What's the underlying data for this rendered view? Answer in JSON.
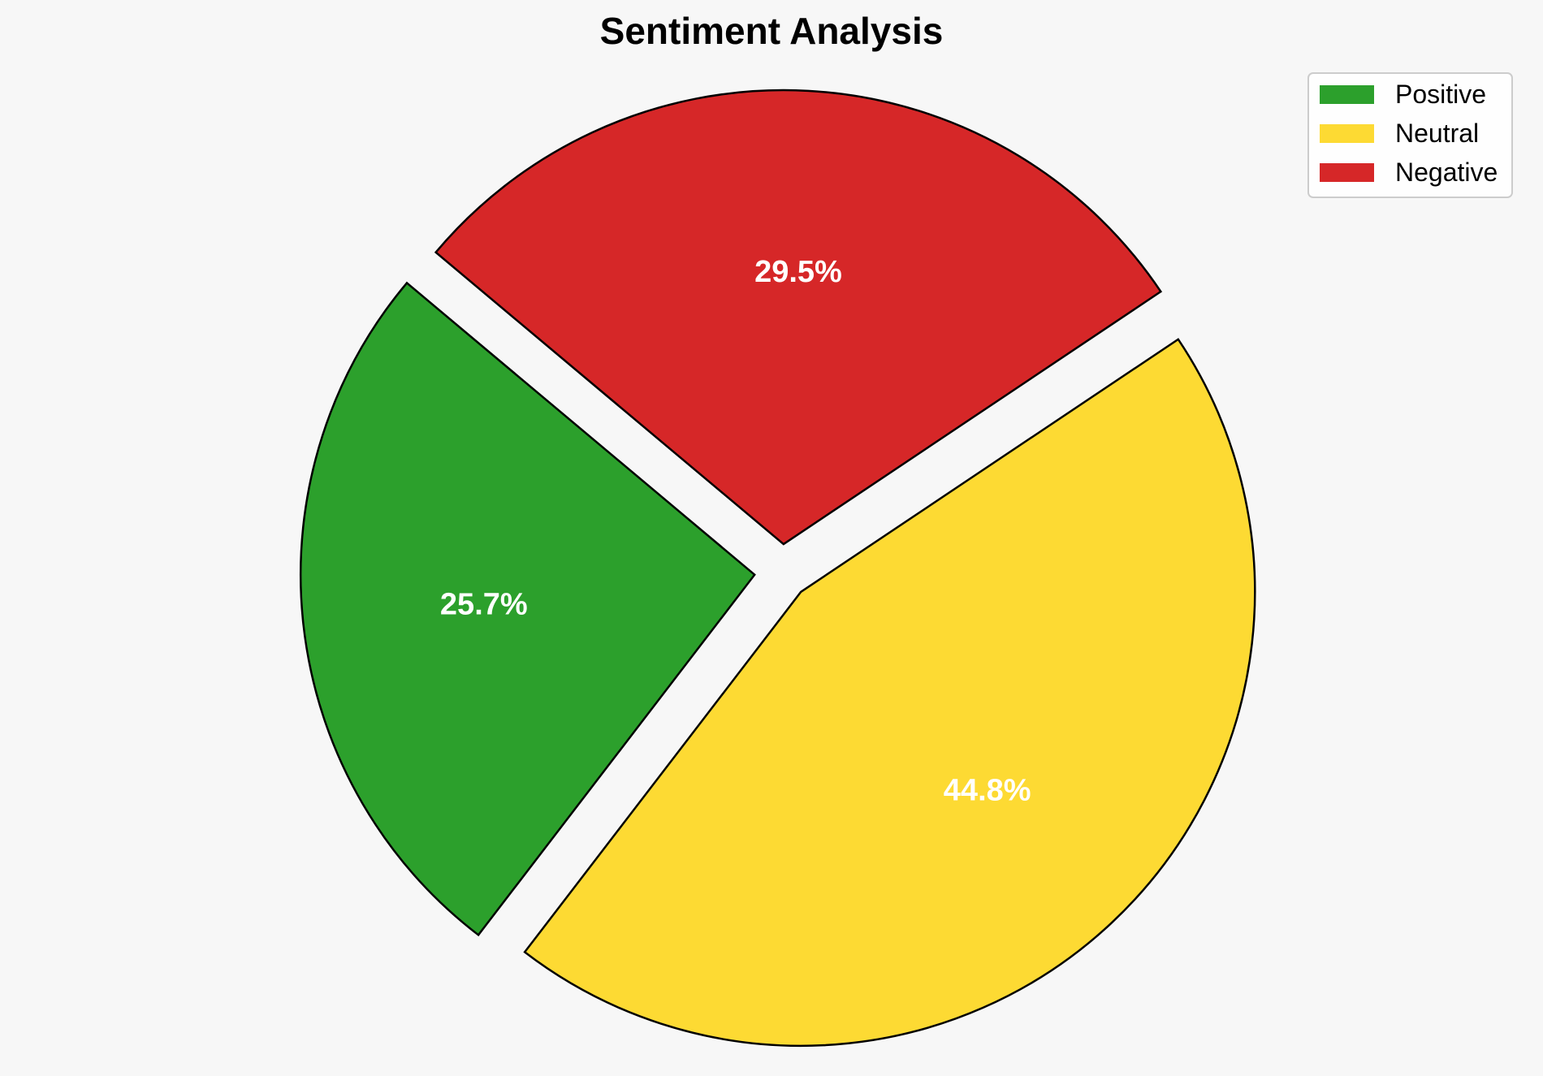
{
  "chart_data": {
    "type": "pie",
    "title": "Sentiment Analysis",
    "slices": [
      {
        "name": "Positive",
        "value": 25.7,
        "label": "25.7%",
        "color": "#2ca02c"
      },
      {
        "name": "Neutral",
        "value": 44.8,
        "label": "44.8%",
        "color": "#fdda33"
      },
      {
        "name": "Negative",
        "value": 29.5,
        "label": "29.5%",
        "color": "#d62728"
      }
    ],
    "exploded": true,
    "legend_position": "top-right",
    "background_color": "#f7f7f7",
    "edge_color": "#000000"
  }
}
